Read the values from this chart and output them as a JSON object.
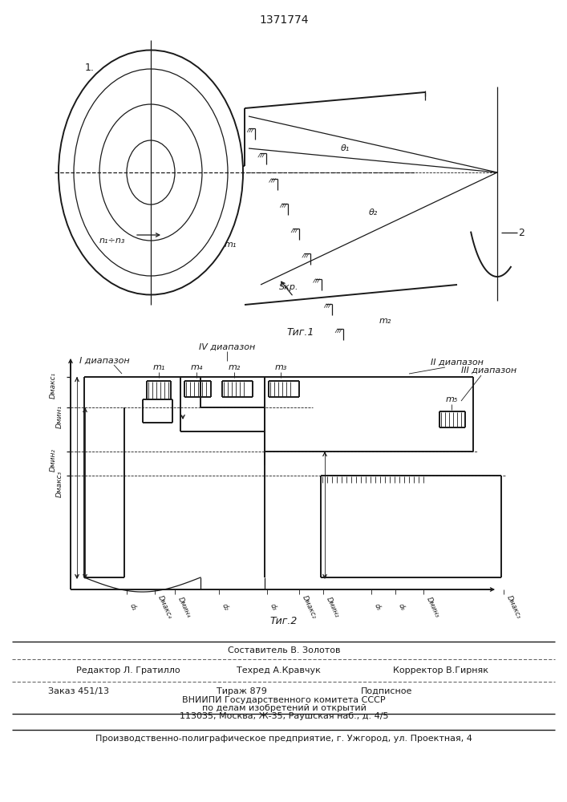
{
  "patent_number": "1371774",
  "fig1_caption": "Τиг.1",
  "fig2_caption": "Τиг.2",
  "label_1": "1.",
  "label_2": "2",
  "label_m1_fig1": "m₁",
  "label_m2_fig1": "m₂",
  "label_n": "n₁÷n₃",
  "label_skr": "Sкр.",
  "label_theta1": "θ₁",
  "label_theta2": "θ₂",
  "label_I": "I диапазон",
  "label_II": "II диапазон",
  "label_III": "III диапазон",
  "label_IV": "IV диапазон",
  "footer_comp": "Составитель В. Золотов",
  "footer_editor": "Редактор Л. Гратилло",
  "footer_tech": "Техред А.Кравчук",
  "footer_corr": "Корректор В.Гирняк",
  "footer_order": "Заказ 451/13",
  "footer_print": "Тираж 879",
  "footer_sub": "Подписное",
  "footer_vniip": "ВНИИПИ Государственного комитета СССР",
  "footer_affairs": "по делам изобретений и открытий",
  "footer_addr": "113035, Москва, Ж-35, Раушская наб., д. 4/5",
  "footer_prod": "Производственно-полиграфическое предприятие, г. Ужгород, ул. Проектная, 4",
  "bg_color": "#ffffff",
  "ink_color": "#1a1a1a"
}
